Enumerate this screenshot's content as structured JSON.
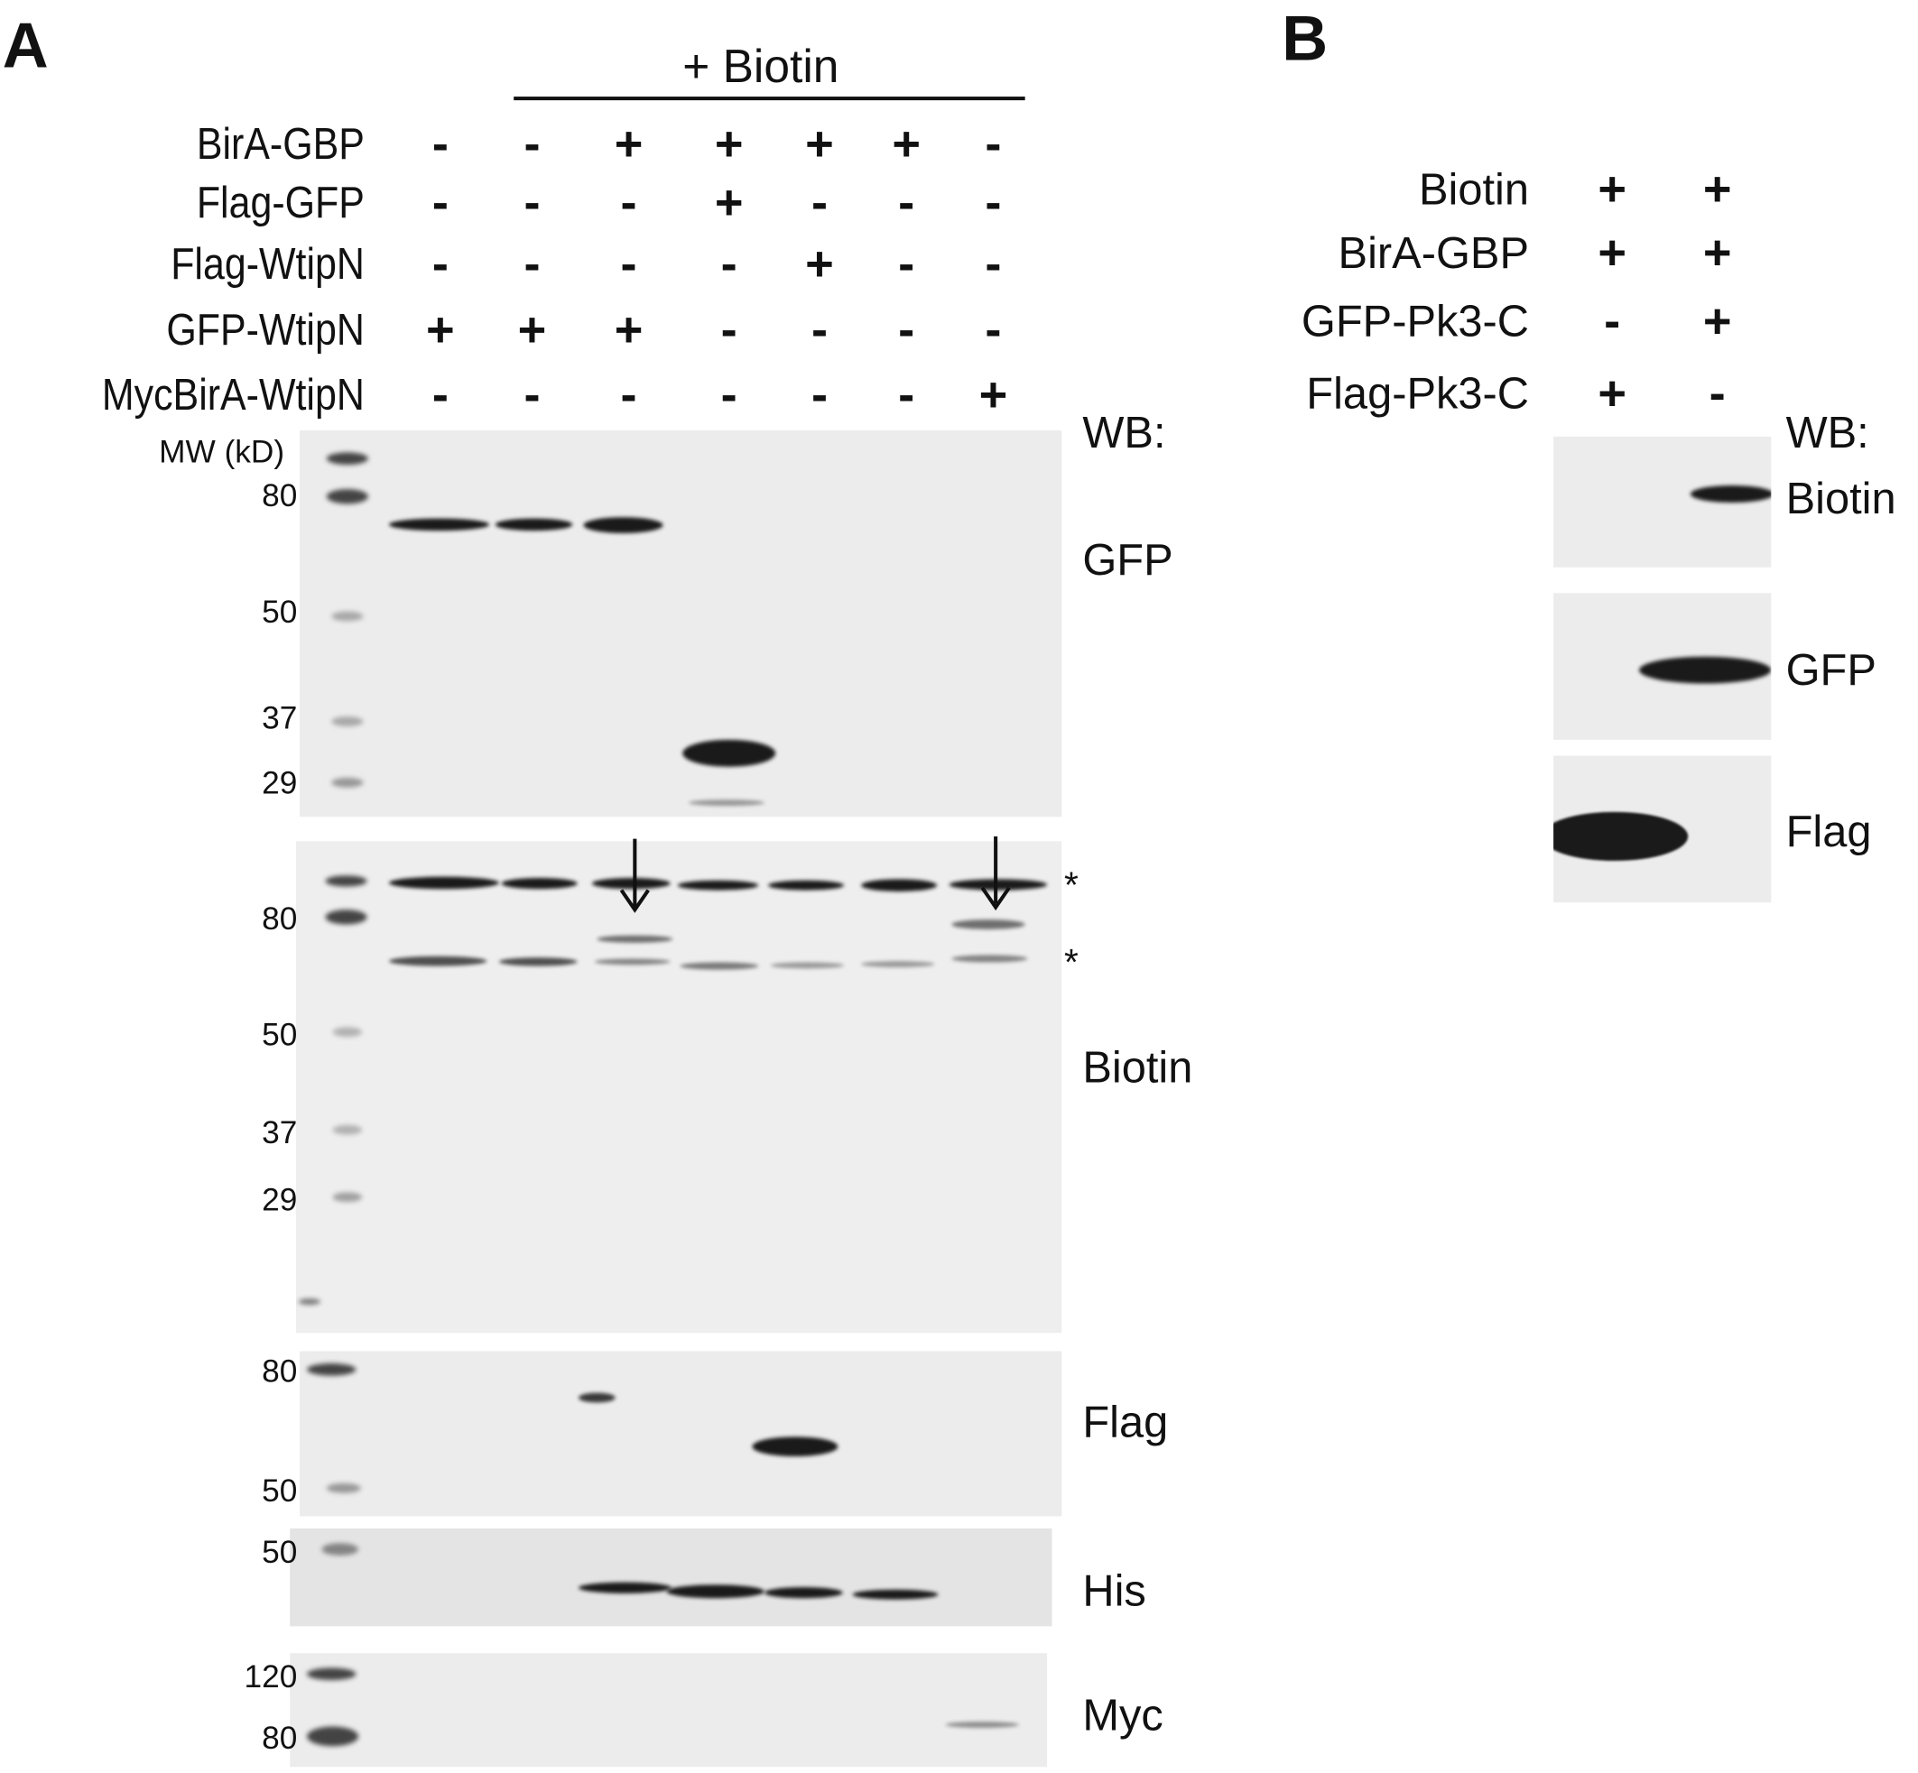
{
  "panel_a": {
    "letter": "A",
    "biotin_header": "+ Biotin",
    "rows": [
      {
        "label": "BirA-GBP",
        "lanes": [
          "-",
          "-",
          "+",
          "+",
          "+",
          "+",
          "-"
        ]
      },
      {
        "label": "Flag-GFP",
        "lanes": [
          "-",
          "-",
          "-",
          "+",
          "-",
          "-",
          "-"
        ]
      },
      {
        "label": "Flag-WtipN",
        "lanes": [
          "-",
          "-",
          "-",
          "-",
          "+",
          "-",
          "-"
        ]
      },
      {
        "label": "GFP-WtipN",
        "lanes": [
          "+",
          "+",
          "+",
          "-",
          "-",
          "-",
          "-"
        ]
      },
      {
        "label": "MycBirA-WtipN",
        "lanes": [
          "-",
          "-",
          "-",
          "-",
          "-",
          "-",
          "+"
        ]
      }
    ],
    "wb_label": "WB:",
    "mw_label": "MW (kD)",
    "blots": [
      {
        "antibody": "GFP",
        "mw": [
          "80",
          "50",
          "37",
          "29"
        ]
      },
      {
        "antibody": "Biotin",
        "mw": [
          "80",
          "50",
          "37",
          "29"
        ],
        "asterisks": [
          "*",
          "*"
        ]
      },
      {
        "antibody": "Flag",
        "mw": [
          "80",
          "50"
        ]
      },
      {
        "antibody": "His",
        "mw": [
          "50"
        ]
      },
      {
        "antibody": "Myc",
        "mw": [
          "120",
          "80"
        ]
      }
    ]
  },
  "panel_b": {
    "letter": "B",
    "rows": [
      {
        "label": "Biotin",
        "lanes": [
          "+",
          "+"
        ]
      },
      {
        "label": "BirA-GBP",
        "lanes": [
          "+",
          "+"
        ]
      },
      {
        "label": "GFP-Pk3-C",
        "lanes": [
          "-",
          "+"
        ]
      },
      {
        "label": "Flag-Pk3-C",
        "lanes": [
          "+",
          "-"
        ]
      }
    ],
    "wb_label": "WB:",
    "blots": [
      {
        "antibody": "Biotin"
      },
      {
        "antibody": "GFP"
      },
      {
        "antibody": "Flag"
      }
    ]
  }
}
